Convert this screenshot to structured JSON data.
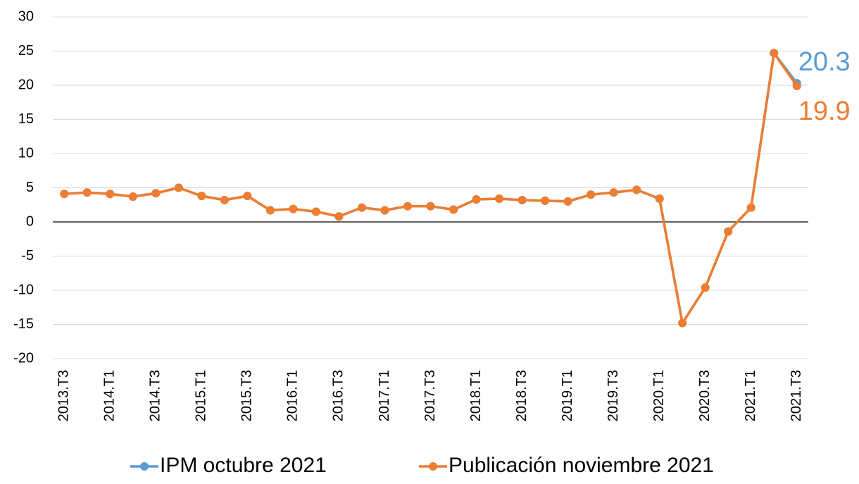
{
  "chart_data": {
    "type": "line",
    "categories": [
      "2013.T3",
      null,
      "2014.T1",
      null,
      "2014.T3",
      null,
      "2015.T1",
      null,
      "2015.T3",
      null,
      "2016.T1",
      null,
      "2016.T3",
      null,
      "2017.T1",
      null,
      "2017.T3",
      null,
      "2018.T1",
      null,
      "2018.T3",
      null,
      "2019.T1",
      null,
      "2019.T3",
      null,
      "2020.T1",
      null,
      "2020.T3",
      null,
      "2021.T1",
      null,
      "2021.T3"
    ],
    "series": [
      {
        "name": "IPM octubre 2021",
        "color": "#5b9bd5",
        "values": [
          4.1,
          4.3,
          4.1,
          3.7,
          4.2,
          5.0,
          3.8,
          3.2,
          3.8,
          1.7,
          1.9,
          1.5,
          0.8,
          2.1,
          1.7,
          2.3,
          2.3,
          1.8,
          3.3,
          3.4,
          3.2,
          3.1,
          3.0,
          4.0,
          4.3,
          4.7,
          3.4,
          -14.8,
          -9.6,
          -1.4,
          2.1,
          24.7,
          20.3
        ],
        "value_labels": [
          null,
          null,
          null,
          null,
          null,
          null,
          null,
          null,
          null,
          null,
          null,
          null,
          null,
          null,
          null,
          null,
          null,
          null,
          null,
          null,
          null,
          null,
          null,
          null,
          null,
          null,
          null,
          null,
          null,
          null,
          null,
          null,
          "20.3"
        ]
      },
      {
        "name": "Publicación noviembre 2021",
        "color": "#ed7d31",
        "values": [
          4.1,
          4.3,
          4.1,
          3.7,
          4.2,
          5.0,
          3.8,
          3.2,
          3.8,
          1.7,
          1.9,
          1.5,
          0.8,
          2.1,
          1.7,
          2.3,
          2.3,
          1.8,
          3.3,
          3.4,
          3.2,
          3.1,
          3.0,
          4.0,
          4.3,
          4.7,
          3.4,
          -14.8,
          -9.6,
          -1.4,
          2.1,
          24.7,
          19.9
        ],
        "value_labels": [
          null,
          null,
          null,
          null,
          null,
          null,
          null,
          null,
          null,
          null,
          null,
          null,
          null,
          null,
          null,
          null,
          null,
          null,
          null,
          null,
          null,
          null,
          null,
          null,
          null,
          null,
          null,
          null,
          null,
          null,
          null,
          null,
          "19.9"
        ]
      }
    ],
    "ylim": [
      -20,
      30
    ],
    "yticks": [
      -20,
      -15,
      -10,
      -5,
      0,
      5,
      10,
      15,
      20,
      25,
      30
    ],
    "grid": true,
    "legend": "bottom"
  }
}
